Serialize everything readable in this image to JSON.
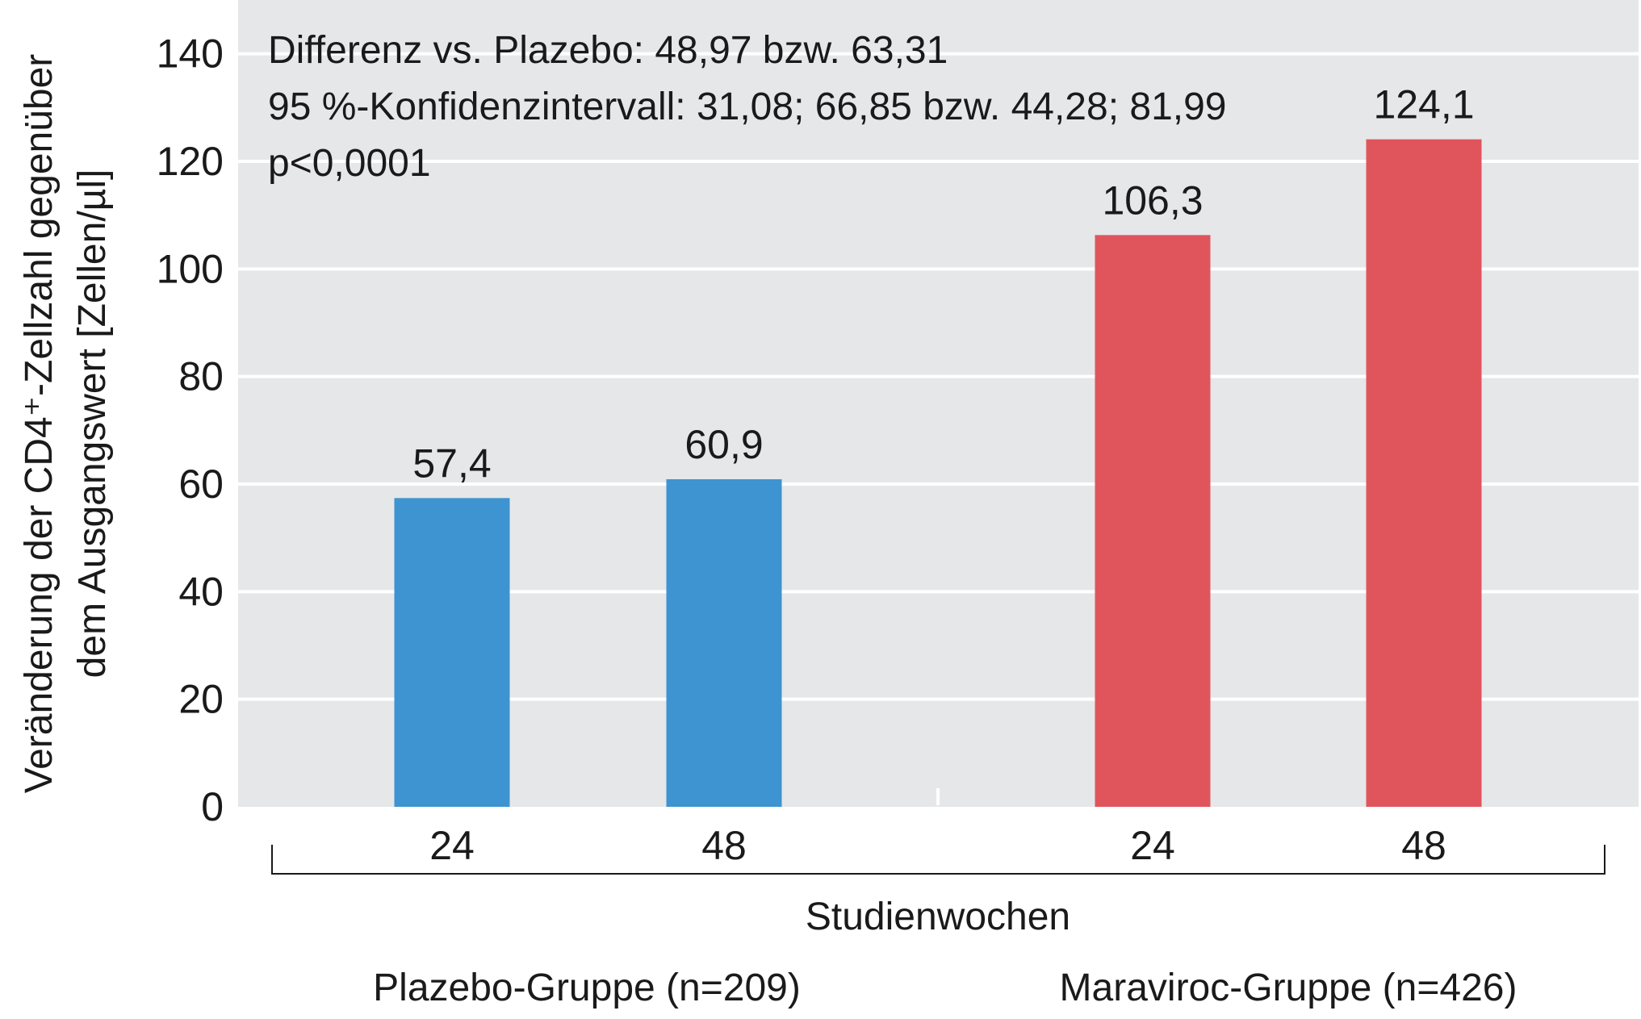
{
  "chart_data": {
    "type": "bar",
    "ylabel_lines": [
      "Veränderung der CD4⁺-Zellzahl gegenüber",
      "dem Ausgangswert [Zellen/µl]"
    ],
    "xlabel": "Studienwochen",
    "ylim": [
      0,
      150
    ],
    "yticks": [
      0,
      20,
      40,
      60,
      80,
      100,
      120,
      140
    ],
    "grid": true,
    "annotations": [
      "Differenz vs. Plazebo: 48,97 bzw. 63,31",
      "95 %-Konfidenzintervall: 31,08; 66,85 bzw. 44,28; 81,99",
      "p<0,0001"
    ],
    "groups": [
      {
        "name": "Plazebo-Gruppe (n=209)",
        "color": "#3e93d1",
        "categories": [
          "24",
          "48"
        ],
        "values": [
          57.4,
          60.9
        ],
        "labels": [
          "57,4",
          "60,9"
        ]
      },
      {
        "name": "Maraviroc-Gruppe (n=426)",
        "color": "#e0555c",
        "categories": [
          "24",
          "48"
        ],
        "values": [
          106.3,
          124.1
        ],
        "labels": [
          "106,3",
          "124,1"
        ]
      }
    ],
    "colors": {
      "plot_background": "#e6e7e9",
      "gridline": "#ffffff",
      "text": "#1a1a1a"
    }
  }
}
